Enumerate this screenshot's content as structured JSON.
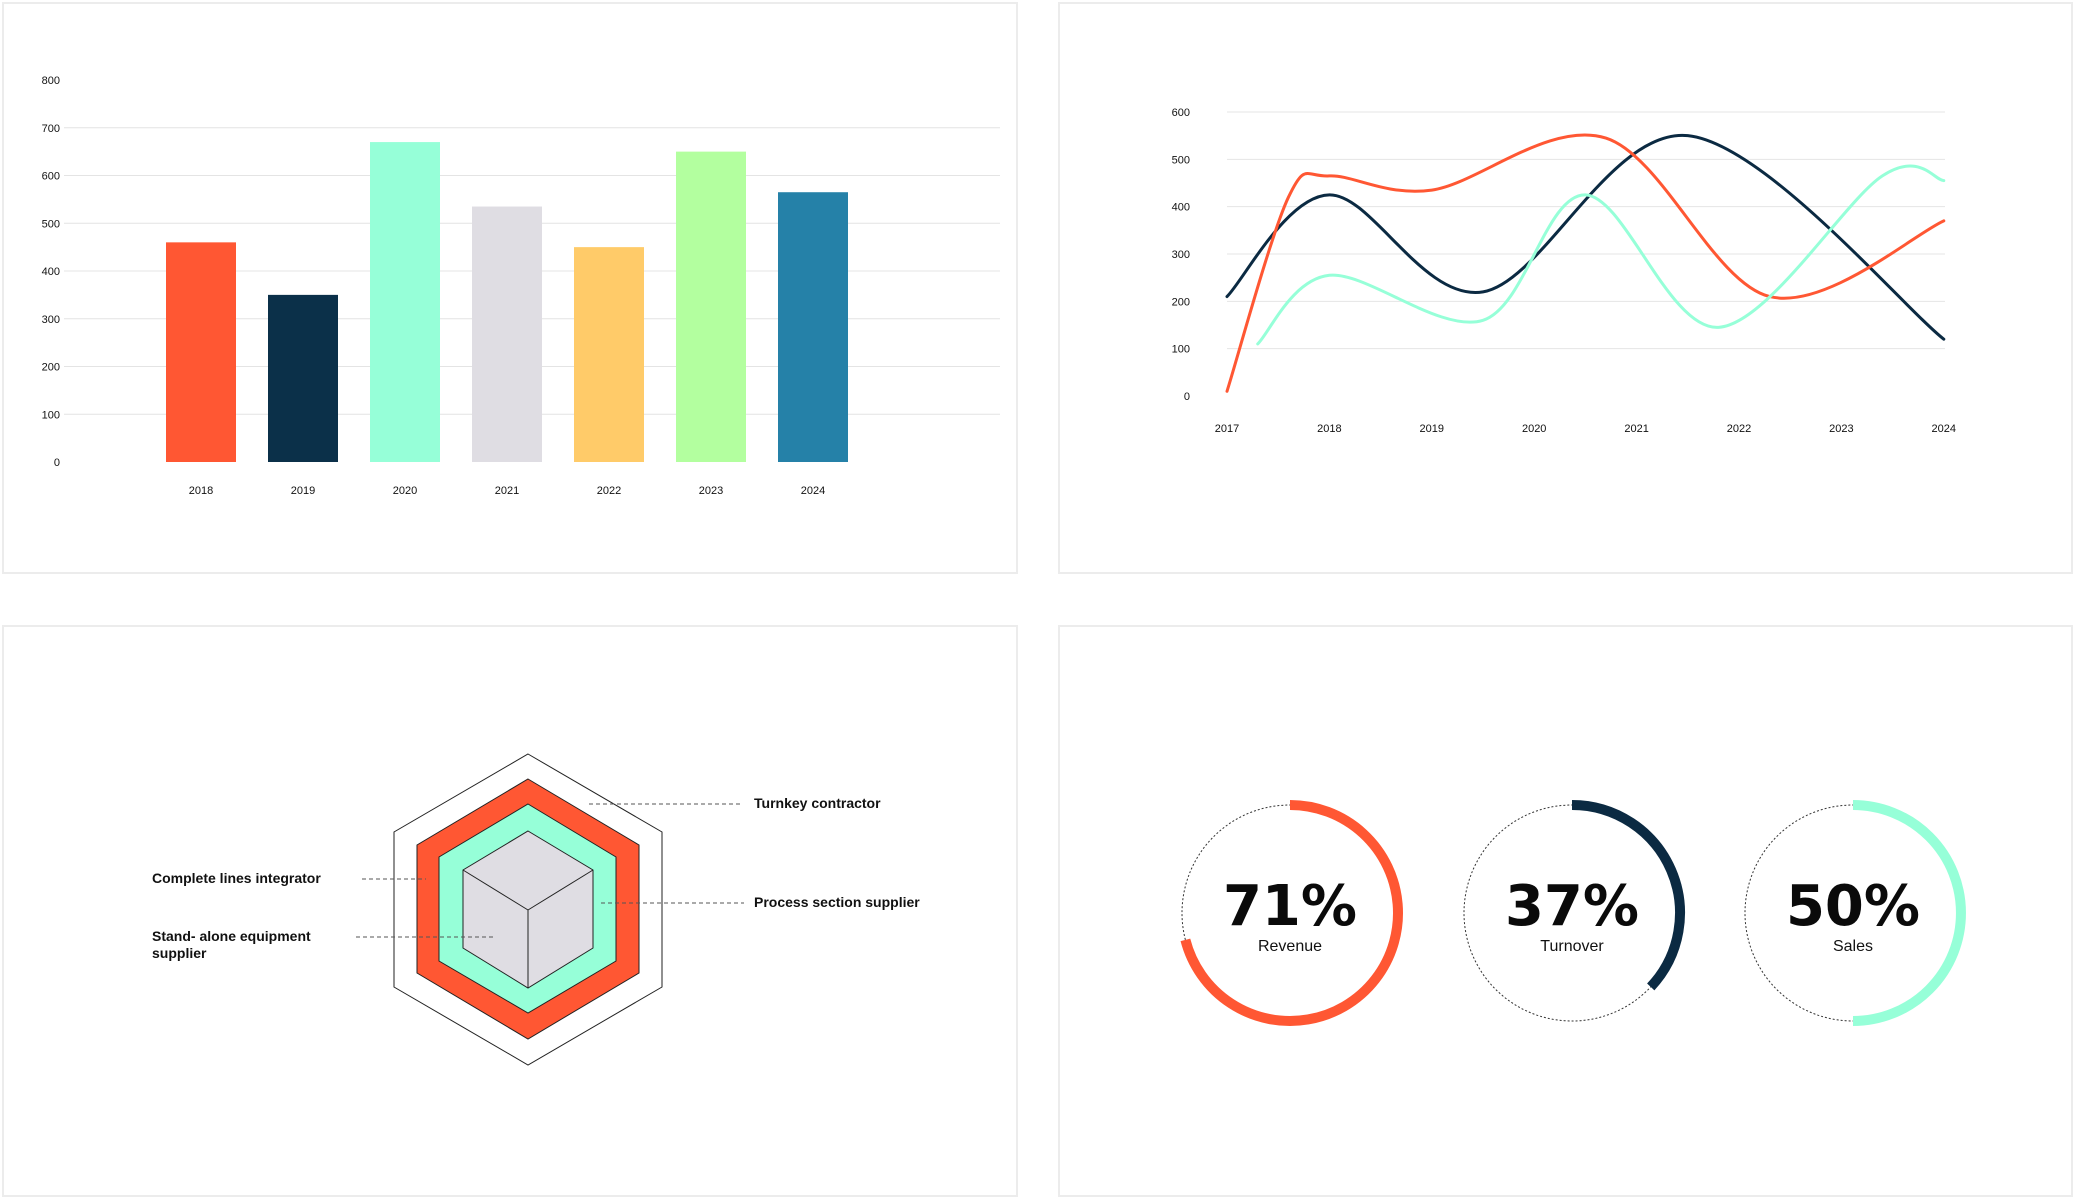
{
  "chart_data": [
    {
      "type": "bar",
      "categories": [
        "2018",
        "2019",
        "2020",
        "2021",
        "2022",
        "2023",
        "2024"
      ],
      "values": [
        460,
        350,
        670,
        535,
        450,
        650,
        565
      ],
      "colors": [
        "#ff5733",
        "#0b3049",
        "#96ffd8",
        "#dfdde3",
        "#ffcb69",
        "#b3ff9f",
        "#2581a8"
      ],
      "yticks": [
        0,
        100,
        200,
        300,
        400,
        500,
        600,
        700,
        800
      ],
      "ylim": [
        0,
        800
      ],
      "grid": true
    },
    {
      "type": "line",
      "x": [
        "2017",
        "2018",
        "2019",
        "2020",
        "2021",
        "2022",
        "2023",
        "2024"
      ],
      "yticks": [
        0,
        100,
        200,
        300,
        400,
        500,
        600
      ],
      "ylim": [
        0,
        600
      ],
      "grid": true,
      "series": [
        {
          "color": "#0b2a42",
          "points": [
            [
              2017,
              210
            ],
            [
              2018,
              425
            ],
            [
              2019.5,
              220
            ],
            [
              2021.5,
              550
            ],
            [
              2024,
              120
            ]
          ]
        },
        {
          "color": "#ff5733",
          "points": [
            [
              2017,
              10
            ],
            [
              2017.6,
              420
            ],
            [
              2018,
              465
            ],
            [
              2019,
              435
            ],
            [
              2020.7,
              545
            ],
            [
              2022.3,
              210
            ],
            [
              2024,
              370
            ]
          ]
        },
        {
          "color": "#96ffd8",
          "points": [
            [
              2017.3,
              110
            ],
            [
              2018,
              255
            ],
            [
              2019.5,
              160
            ],
            [
              2020.5,
              425
            ],
            [
              2021.8,
              145
            ],
            [
              2023.4,
              465
            ],
            [
              2024,
              455
            ]
          ]
        }
      ]
    },
    {
      "type": "diagram",
      "labels": {
        "turnkey": "Turnkey contractor",
        "complete": "Complete lines integrator",
        "process": "Process section supplier",
        "standalone_1": "Stand- alone equipment",
        "standalone_2": "supplier"
      },
      "colors": {
        "outer": "#ff5733",
        "middle": "#96ffd8",
        "core": "#dfdde3"
      }
    },
    {
      "type": "gauge",
      "items": [
        {
          "label": "Revenue",
          "value": 71,
          "display": "71%",
          "color": "#ff5733"
        },
        {
          "label": "Turnover",
          "value": 37,
          "display": "37%",
          "color": "#0b2a42"
        },
        {
          "label": "Sales",
          "value": 50,
          "display": "50%",
          "color": "#96ffd8"
        }
      ]
    }
  ]
}
